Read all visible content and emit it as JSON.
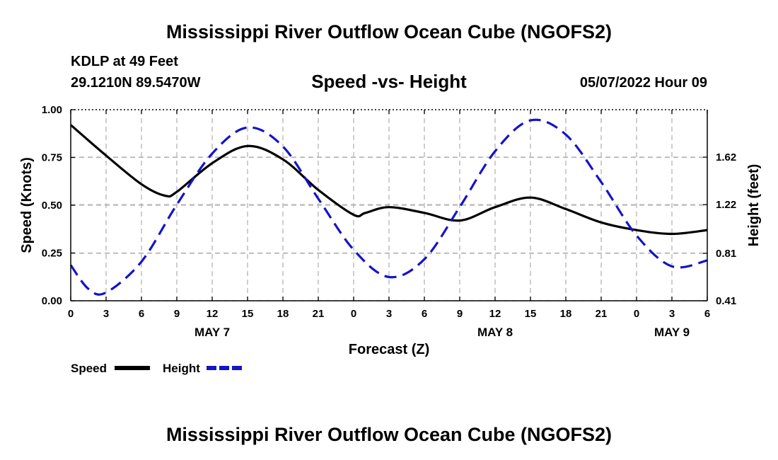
{
  "header": {
    "title": "Mississippi River Outflow Ocean Cube (NGOFS2)",
    "station": "KDLP at 49 Feet",
    "coords": "29.1210N  89.5470W",
    "subtitle": "Speed -vs- Height",
    "datetime": "05/07/2022 Hour 09"
  },
  "footer": {
    "title": "Mississippi River Outflow Ocean Cube (NGOFS2)"
  },
  "colors": {
    "speed": "#000000",
    "height": "#1414c8",
    "grid": "#b4b4b4"
  },
  "chart_data": {
    "type": "line",
    "title": "Speed -vs- Height",
    "xlabel": "Forecast (Z)",
    "ylabel": "Speed (Knots)",
    "y2label": "Height (feet)",
    "x_unit": "hours since 05/07/2022 00Z",
    "xlim": [
      0,
      54
    ],
    "ylim": [
      0,
      1
    ],
    "y2lim": [
      0.41,
      2.02
    ],
    "grid": true,
    "x_ticks": [
      0,
      3,
      6,
      9,
      12,
      15,
      18,
      21,
      24,
      27,
      30,
      33,
      36,
      39,
      42,
      45,
      48,
      51,
      54
    ],
    "x_tick_labels": [
      "0",
      "3",
      "6",
      "9",
      "12",
      "15",
      "18",
      "21",
      "0",
      "3",
      "6",
      "9",
      "12",
      "15",
      "18",
      "21",
      "0",
      "3",
      "6"
    ],
    "day_labels": [
      {
        "x": 12,
        "label": "MAY 7"
      },
      {
        "x": 36,
        "label": "MAY 8"
      },
      {
        "x": 51,
        "label": "MAY 9"
      }
    ],
    "y_ticks": [
      0,
      0.25,
      0.5,
      0.75,
      1
    ],
    "y_tick_labels": [
      "0.00",
      "0.25",
      "0.50",
      "0.75",
      "1.00"
    ],
    "y2_ticks": [
      0.41,
      0.81,
      1.22,
      1.62
    ],
    "y2_tick_labels": [
      "0.41",
      "0.81",
      "1.22",
      "1.62"
    ],
    "legend": [
      {
        "name": "Speed",
        "style": "solid"
      },
      {
        "name": "Height",
        "style": "dashed"
      }
    ],
    "legend_position": "bottom-left",
    "series": [
      {
        "name": "Speed",
        "axis": "left",
        "style": "solid",
        "x": [
          0,
          3,
          6,
          8,
          9,
          12,
          15,
          18,
          21,
          24,
          25,
          27,
          30,
          33,
          36,
          39,
          42,
          45,
          48,
          51,
          54
        ],
        "values": [
          0.92,
          0.76,
          0.61,
          0.55,
          0.57,
          0.72,
          0.81,
          0.74,
          0.58,
          0.45,
          0.46,
          0.49,
          0.46,
          0.42,
          0.49,
          0.54,
          0.48,
          0.41,
          0.37,
          0.35,
          0.37
        ]
      },
      {
        "name": "Height",
        "axis": "right",
        "style": "dashed",
        "x": [
          0,
          1.5,
          3,
          6,
          9,
          12,
          15,
          18,
          21,
          24,
          27,
          30,
          33,
          36,
          39,
          42,
          45,
          48,
          51,
          54
        ],
        "values": [
          0.71,
          0.51,
          0.48,
          0.74,
          1.22,
          1.65,
          1.87,
          1.71,
          1.27,
          0.84,
          0.61,
          0.76,
          1.2,
          1.67,
          1.93,
          1.81,
          1.41,
          0.96,
          0.7,
          0.75
        ]
      }
    ]
  }
}
